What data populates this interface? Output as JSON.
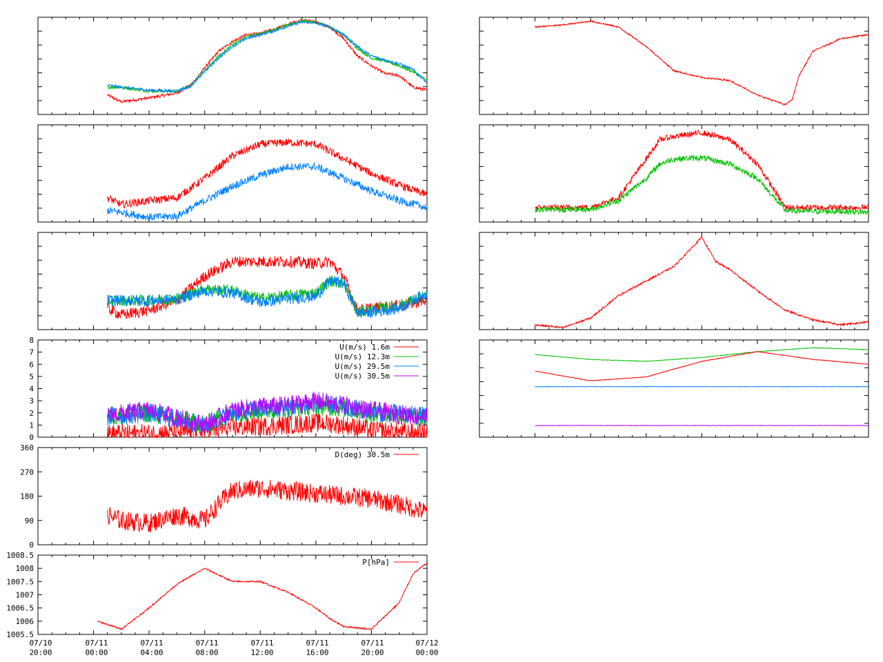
{
  "figure": {
    "x_tick_labels": [
      {
        "date": "07/10",
        "time": "20:00"
      },
      {
        "date": "07/11",
        "time": "00:00"
      },
      {
        "date": "07/11",
        "time": "04:00"
      },
      {
        "date": "07/11",
        "time": "08:00"
      },
      {
        "date": "07/11",
        "time": "12:00"
      },
      {
        "date": "07/11",
        "time": "16:00"
      },
      {
        "date": "07/11",
        "time": "20:00"
      },
      {
        "date": "07/12",
        "time": "00:00"
      }
    ],
    "x_range": [
      "07/10 20:00",
      "07/12 00:00"
    ],
    "colors": {
      "red": "#ff0000",
      "green": "#00c000",
      "blue": "#0080ff",
      "purple": "#c000ff",
      "axis": "#000000"
    }
  },
  "chart_data": [
    {
      "id": "left-1",
      "type": "line",
      "x_unit": "hours since 07/10 20:00",
      "xlim": [
        0,
        28
      ],
      "ylim": [
        0,
        1
      ],
      "series": [
        {
          "color": "red",
          "x": [
            5,
            6,
            8,
            10,
            11,
            12,
            13,
            14,
            15,
            16,
            17,
            18,
            19,
            20,
            21,
            22,
            23,
            24,
            25,
            26,
            27,
            28
          ],
          "values": [
            0.2,
            0.13,
            0.17,
            0.22,
            0.3,
            0.48,
            0.65,
            0.75,
            0.82,
            0.83,
            0.88,
            0.93,
            0.97,
            0.95,
            0.9,
            0.78,
            0.6,
            0.5,
            0.42,
            0.4,
            0.28,
            0.25
          ]
        },
        {
          "color": "green",
          "x": [
            5,
            6,
            8,
            10,
            11,
            12,
            13,
            14,
            15,
            16,
            17,
            18,
            19,
            20,
            21,
            22,
            23,
            24,
            25,
            26,
            27,
            28
          ],
          "values": [
            0.28,
            0.28,
            0.24,
            0.24,
            0.3,
            0.45,
            0.6,
            0.72,
            0.8,
            0.83,
            0.87,
            0.92,
            0.96,
            0.95,
            0.9,
            0.82,
            0.68,
            0.58,
            0.55,
            0.5,
            0.44,
            0.35
          ]
        },
        {
          "color": "blue",
          "x": [
            5,
            6,
            8,
            10,
            11,
            12,
            13,
            14,
            15,
            16,
            17,
            18,
            19,
            20,
            21,
            22,
            23,
            24,
            25,
            26,
            27,
            28
          ],
          "values": [
            0.3,
            0.28,
            0.25,
            0.24,
            0.29,
            0.44,
            0.58,
            0.7,
            0.78,
            0.82,
            0.86,
            0.91,
            0.95,
            0.94,
            0.9,
            0.82,
            0.7,
            0.6,
            0.56,
            0.52,
            0.46,
            0.33
          ]
        }
      ]
    },
    {
      "id": "left-2",
      "type": "line",
      "xlim": [
        0,
        28
      ],
      "ylim": [
        0,
        1
      ],
      "series": [
        {
          "color": "red",
          "x": [
            5,
            6,
            8,
            10,
            12,
            14,
            16,
            18,
            20,
            22,
            24,
            26,
            28
          ],
          "values": [
            0.25,
            0.18,
            0.22,
            0.25,
            0.45,
            0.68,
            0.8,
            0.82,
            0.8,
            0.65,
            0.5,
            0.38,
            0.28
          ]
        },
        {
          "color": "blue",
          "x": [
            5,
            6,
            8,
            10,
            12,
            14,
            16,
            18,
            20,
            22,
            24,
            26,
            28
          ],
          "values": [
            0.12,
            0.1,
            0.05,
            0.06,
            0.22,
            0.37,
            0.48,
            0.57,
            0.57,
            0.45,
            0.32,
            0.22,
            0.15
          ]
        }
      ]
    },
    {
      "id": "left-3",
      "type": "line",
      "xlim": [
        0,
        28
      ],
      "ylim": [
        0,
        1
      ],
      "series": [
        {
          "color": "red",
          "x": [
            5,
            6,
            8,
            10,
            12,
            14,
            16,
            18,
            20,
            21,
            22,
            23,
            24,
            26,
            28
          ],
          "values": [
            0.22,
            0.15,
            0.2,
            0.3,
            0.55,
            0.7,
            0.7,
            0.7,
            0.68,
            0.7,
            0.55,
            0.2,
            0.22,
            0.25,
            0.3
          ]
        },
        {
          "color": "green",
          "x": [
            5,
            6,
            8,
            10,
            12,
            14,
            16,
            18,
            20,
            21,
            22,
            23,
            24,
            26,
            28
          ],
          "values": [
            0.3,
            0.3,
            0.3,
            0.32,
            0.42,
            0.4,
            0.32,
            0.35,
            0.38,
            0.5,
            0.48,
            0.18,
            0.2,
            0.25,
            0.35
          ]
        },
        {
          "color": "blue",
          "x": [
            5,
            6,
            8,
            10,
            12,
            14,
            16,
            18,
            20,
            21,
            22,
            23,
            24,
            26,
            28
          ],
          "values": [
            0.3,
            0.3,
            0.3,
            0.31,
            0.4,
            0.38,
            0.28,
            0.32,
            0.34,
            0.5,
            0.48,
            0.17,
            0.18,
            0.22,
            0.38
          ]
        }
      ]
    },
    {
      "id": "left-4",
      "type": "line",
      "ylabel": "",
      "xlim": [
        0,
        28
      ],
      "ylim": [
        0,
        8
      ],
      "yticks": [
        0,
        1,
        2,
        3,
        4,
        5,
        6,
        7,
        8
      ],
      "series": [
        {
          "name": "U(m/s)  1.6m",
          "color": "red",
          "x": [
            5,
            8,
            10,
            12,
            14,
            16,
            18,
            20,
            22,
            24,
            26,
            28
          ],
          "values": [
            0.3,
            0.3,
            0.4,
            0.5,
            0.8,
            0.9,
            1.0,
            1.2,
            1.0,
            0.6,
            0.4,
            0.3
          ]
        },
        {
          "name": "U(m/s) 12.3m",
          "color": "green",
          "x": [
            5,
            8,
            10,
            12,
            14,
            16,
            18,
            20,
            22,
            24,
            26,
            28
          ],
          "values": [
            1.7,
            2.0,
            1.5,
            1.0,
            2.0,
            2.2,
            2.4,
            2.6,
            2.4,
            2.0,
            1.8,
            1.6
          ]
        },
        {
          "name": "U(m/s) 29.5m",
          "color": "blue",
          "x": [
            5,
            8,
            10,
            12,
            14,
            16,
            18,
            20,
            22,
            24,
            26,
            28
          ],
          "values": [
            1.7,
            2.0,
            1.5,
            1.0,
            2.0,
            2.3,
            2.4,
            2.8,
            2.5,
            2.1,
            1.9,
            1.7
          ]
        },
        {
          "name": "U(m/s) 30.5m",
          "color": "purple",
          "x": [
            5,
            8,
            10,
            12,
            14,
            16,
            18,
            20,
            22,
            24,
            26,
            28
          ],
          "values": [
            1.8,
            2.2,
            1.6,
            1.0,
            2.2,
            2.5,
            2.6,
            3.0,
            2.6,
            2.2,
            1.9,
            1.7
          ]
        }
      ]
    },
    {
      "id": "left-5",
      "type": "line",
      "xlim": [
        0,
        28
      ],
      "ylim": [
        0,
        360
      ],
      "yticks": [
        0,
        90,
        180,
        270,
        360
      ],
      "series": [
        {
          "name": "D(deg)  30.5m",
          "color": "red",
          "x": [
            5,
            6,
            8,
            10,
            12,
            13,
            14,
            16,
            18,
            20,
            22,
            24,
            26,
            28
          ],
          "values": [
            110,
            90,
            80,
            110,
            90,
            150,
            200,
            210,
            200,
            190,
            180,
            170,
            150,
            120
          ]
        }
      ]
    },
    {
      "id": "left-6",
      "type": "line",
      "xlim": [
        0,
        28
      ],
      "ylim": [
        1005.5,
        1008.5
      ],
      "yticks": [
        1005.5,
        1006,
        1006.5,
        1007,
        1007.5,
        1008,
        1008.5
      ],
      "series": [
        {
          "name": "P[hPa]",
          "color": "red",
          "x": [
            4.3,
            6,
            8,
            10,
            12,
            14,
            16,
            18,
            20,
            21,
            22,
            24,
            26,
            27,
            28
          ],
          "values": [
            1006.0,
            1005.7,
            1006.5,
            1007.4,
            1008.0,
            1007.5,
            1007.5,
            1007.1,
            1006.5,
            1006.1,
            1005.8,
            1005.7,
            1006.7,
            1007.8,
            1008.2
          ]
        }
      ]
    },
    {
      "id": "right-1",
      "type": "line",
      "xlim": [
        0,
        28
      ],
      "ylim": [
        0,
        1
      ],
      "series": [
        {
          "color": "red",
          "x": [
            4,
            6,
            8,
            10,
            12,
            14,
            16,
            18,
            20,
            22,
            22.5,
            23,
            24,
            26,
            28
          ],
          "values": [
            0.9,
            0.92,
            0.96,
            0.9,
            0.7,
            0.45,
            0.38,
            0.35,
            0.2,
            0.1,
            0.15,
            0.4,
            0.65,
            0.78,
            0.82
          ]
        }
      ]
    },
    {
      "id": "right-2",
      "type": "line",
      "xlim": [
        0,
        28
      ],
      "ylim": [
        0,
        1
      ],
      "series": [
        {
          "color": "red",
          "x": [
            4,
            8,
            10,
            12,
            13,
            14,
            16,
            18,
            20,
            22,
            24,
            26,
            28
          ],
          "values": [
            0.15,
            0.15,
            0.25,
            0.65,
            0.85,
            0.88,
            0.92,
            0.85,
            0.6,
            0.15,
            0.15,
            0.15,
            0.15
          ]
        },
        {
          "color": "green",
          "x": [
            4,
            8,
            10,
            12,
            13,
            14,
            16,
            18,
            20,
            22,
            24,
            26,
            28
          ],
          "values": [
            0.13,
            0.13,
            0.22,
            0.45,
            0.6,
            0.65,
            0.66,
            0.6,
            0.45,
            0.12,
            0.11,
            0.11,
            0.1
          ]
        }
      ]
    },
    {
      "id": "right-3",
      "type": "line",
      "xlim": [
        0,
        28
      ],
      "ylim": [
        0,
        1
      ],
      "series": [
        {
          "color": "red",
          "x": [
            4,
            6,
            8,
            10,
            12,
            14,
            15,
            16,
            17,
            18,
            20,
            22,
            24,
            26,
            28
          ],
          "values": [
            0.05,
            0.02,
            0.12,
            0.35,
            0.5,
            0.65,
            0.8,
            0.95,
            0.7,
            0.62,
            0.4,
            0.2,
            0.1,
            0.05,
            0.08
          ]
        }
      ]
    },
    {
      "id": "right-4",
      "type": "line",
      "xlim": [
        0,
        28
      ],
      "ylim": [
        0,
        1
      ],
      "series": [
        {
          "color": "green",
          "x": [
            4,
            8,
            12,
            16,
            20,
            24,
            28
          ],
          "values": [
            0.85,
            0.8,
            0.78,
            0.82,
            0.88,
            0.92,
            0.9
          ]
        },
        {
          "color": "red",
          "x": [
            4,
            8,
            12,
            16,
            20,
            24,
            28
          ],
          "values": [
            0.68,
            0.58,
            0.62,
            0.78,
            0.88,
            0.8,
            0.75
          ]
        },
        {
          "color": "blue",
          "x": [
            4,
            8,
            12,
            16,
            20,
            24,
            28
          ],
          "values": [
            0.52,
            0.52,
            0.52,
            0.52,
            0.52,
            0.52,
            0.52
          ]
        },
        {
          "color": "purple",
          "x": [
            4,
            8,
            12,
            16,
            20,
            24,
            28
          ],
          "values": [
            0.12,
            0.12,
            0.12,
            0.12,
            0.12,
            0.12,
            0.12
          ]
        }
      ]
    }
  ]
}
